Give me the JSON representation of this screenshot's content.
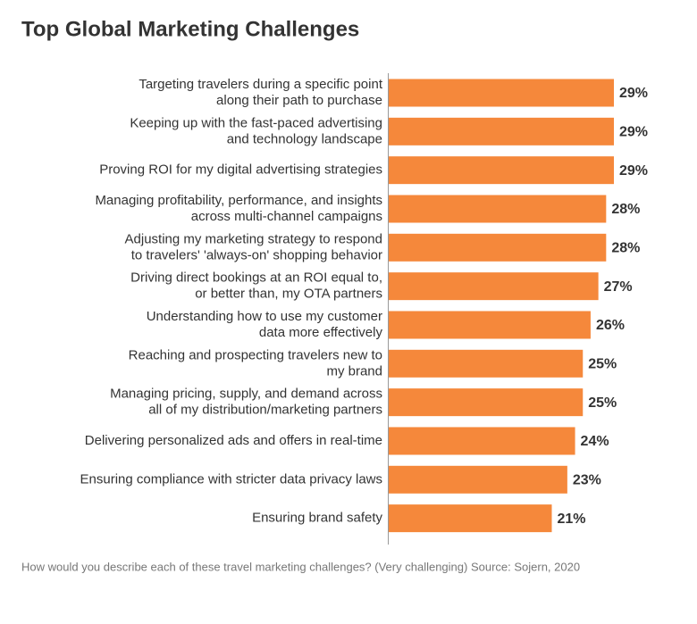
{
  "chart_data": {
    "type": "bar",
    "orientation": "horizontal",
    "title": "Top Global Marketing Challenges",
    "caption": "How would you describe each of these travel marketing challenges? (Very challenging) Source: Sojern, 2020",
    "categories": [
      [
        "Targeting travelers during a specific point",
        "along their path to purchase"
      ],
      [
        "Keeping up with the fast-paced advertising",
        "and technology landscape"
      ],
      [
        "Proving ROI for my digital advertising strategies"
      ],
      [
        "Managing profitability, performance, and insights",
        "across multi-channel campaigns"
      ],
      [
        "Adjusting my marketing strategy to respond",
        "to travelers' 'always-on' shopping behavior"
      ],
      [
        "Driving direct bookings at an ROI equal to,",
        "or better than, my OTA partners"
      ],
      [
        "Understanding how to use my customer",
        "data more effectively"
      ],
      [
        "Reaching and prospecting travelers new to",
        "my brand"
      ],
      [
        "Managing pricing, supply, and demand across",
        "all of my distribution/marketing partners"
      ],
      [
        "Delivering personalized ads and offers in real-time"
      ],
      [
        "Ensuring compliance with stricter data privacy laws"
      ],
      [
        "Ensuring brand safety"
      ]
    ],
    "values": [
      29,
      29,
      29,
      28,
      28,
      27,
      26,
      25,
      25,
      24,
      23,
      21
    ],
    "value_labels": [
      "29%",
      "29%",
      "29%",
      "28%",
      "28%",
      "27%",
      "26%",
      "25%",
      "25%",
      "24%",
      "23%",
      "21%"
    ],
    "color": "#f5883b",
    "xlim": [
      0,
      30
    ]
  }
}
